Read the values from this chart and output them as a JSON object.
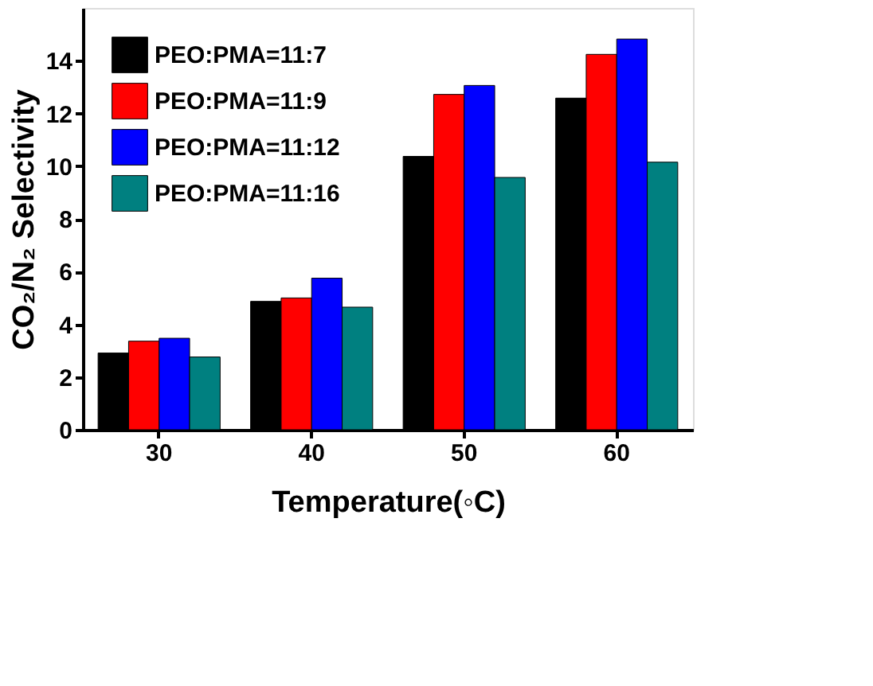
{
  "chart_data": {
    "type": "bar",
    "xlabel": "Temperature(◦C)",
    "ylabel": "CO₂/N₂ Selectivity",
    "categories": [
      "30",
      "40",
      "50",
      "60"
    ],
    "series": [
      {
        "name": "PEO:PMA=11:7",
        "color": "#000000",
        "values": [
          2.91,
          4.87,
          10.37,
          12.58
        ]
      },
      {
        "name": "PEO:PMA=11:9",
        "color": "#ff0000",
        "values": [
          3.36,
          5.0,
          12.72,
          14.24
        ]
      },
      {
        "name": "PEO:PMA=11:12",
        "color": "#0000ff",
        "values": [
          3.47,
          5.75,
          13.06,
          14.82
        ]
      },
      {
        "name": "PEO:PMA=11:16",
        "color": "#008080",
        "values": [
          2.76,
          4.65,
          9.57,
          10.15
        ]
      }
    ],
    "ylim": [
      0,
      16
    ],
    "yticks": [
      0,
      2,
      4,
      6,
      8,
      10,
      12,
      14
    ],
    "grid": false,
    "legend": "top left"
  }
}
